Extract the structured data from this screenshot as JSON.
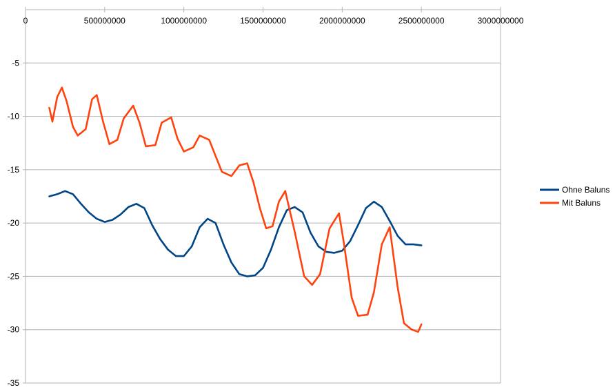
{
  "chart_data": {
    "type": "line",
    "title": "",
    "xlabel": "",
    "ylabel": "",
    "xlim": [
      0,
      3000000000
    ],
    "ylim": [
      -35,
      0
    ],
    "x_ticks": [
      "0",
      "500000000",
      "1000000000",
      "1500000000",
      "2000000000",
      "2500000000",
      "3000000000"
    ],
    "y_ticks": [
      "-5",
      "-10",
      "-15",
      "-20",
      "-25",
      "-30",
      "-35"
    ],
    "grid": "horizontal",
    "legend_position": "right",
    "series": [
      {
        "name": "Ohne Baluns",
        "color": "#004586",
        "x": [
          150000000,
          200000000,
          250000000,
          300000000,
          350000000,
          400000000,
          450000000,
          500000000,
          550000000,
          600000000,
          650000000,
          700000000,
          750000000,
          800000000,
          850000000,
          900000000,
          950000000,
          1000000000,
          1050000000,
          1100000000,
          1150000000,
          1200000000,
          1250000000,
          1300000000,
          1350000000,
          1400000000,
          1450000000,
          1500000000,
          1550000000,
          1600000000,
          1650000000,
          1700000000,
          1750000000,
          1800000000,
          1850000000,
          1900000000,
          1950000000,
          2000000000,
          2050000000,
          2100000000,
          2150000000,
          2200000000,
          2250000000,
          2300000000,
          2350000000,
          2400000000,
          2450000000,
          2500000000
        ],
        "values": [
          -17.5,
          -17.3,
          -17.0,
          -17.3,
          -18.2,
          -19.0,
          -19.6,
          -19.9,
          -19.7,
          -19.2,
          -18.5,
          -18.2,
          -18.6,
          -20.2,
          -21.5,
          -22.5,
          -23.1,
          -23.1,
          -22.2,
          -20.4,
          -19.6,
          -20.0,
          -22.0,
          -23.7,
          -24.8,
          -25.0,
          -24.9,
          -24.2,
          -22.5,
          -20.4,
          -18.8,
          -18.5,
          -19.0,
          -20.9,
          -22.2,
          -22.7,
          -22.8,
          -22.6,
          -21.7,
          -20.2,
          -18.6,
          -18.0,
          -18.5,
          -19.8,
          -21.2,
          -22.0,
          -22.0,
          -22.1
        ]
      },
      {
        "name": "Mit Baluns",
        "color": "#ff420e",
        "x": [
          150000000,
          170000000,
          200000000,
          230000000,
          260000000,
          300000000,
          330000000,
          380000000,
          420000000,
          450000000,
          490000000,
          530000000,
          580000000,
          620000000,
          680000000,
          720000000,
          760000000,
          820000000,
          860000000,
          920000000,
          960000000,
          1000000000,
          1060000000,
          1100000000,
          1160000000,
          1200000000,
          1240000000,
          1300000000,
          1350000000,
          1400000000,
          1440000000,
          1480000000,
          1520000000,
          1560000000,
          1600000000,
          1640000000,
          1700000000,
          1760000000,
          1810000000,
          1860000000,
          1920000000,
          1980000000,
          2010000000,
          2060000000,
          2100000000,
          2160000000,
          2200000000,
          2250000000,
          2300000000,
          2350000000,
          2390000000,
          2440000000,
          2480000000,
          2500000000
        ],
        "values": [
          -9.2,
          -10.5,
          -8.2,
          -7.3,
          -8.6,
          -11.0,
          -11.8,
          -11.2,
          -8.4,
          -8.0,
          -10.5,
          -12.6,
          -12.2,
          -10.2,
          -9.0,
          -10.6,
          -12.8,
          -12.7,
          -10.6,
          -10.1,
          -12.1,
          -13.3,
          -12.9,
          -11.8,
          -12.2,
          -13.7,
          -15.2,
          -15.6,
          -14.6,
          -14.4,
          -16.2,
          -18.6,
          -20.5,
          -20.3,
          -18.0,
          -17.0,
          -20.8,
          -25.0,
          -25.8,
          -24.8,
          -20.5,
          -19.1,
          -21.8,
          -27.0,
          -28.7,
          -28.6,
          -26.5,
          -22.0,
          -20.4,
          -26.0,
          -29.4,
          -30.0,
          -30.2,
          -29.5
        ]
      }
    ]
  }
}
